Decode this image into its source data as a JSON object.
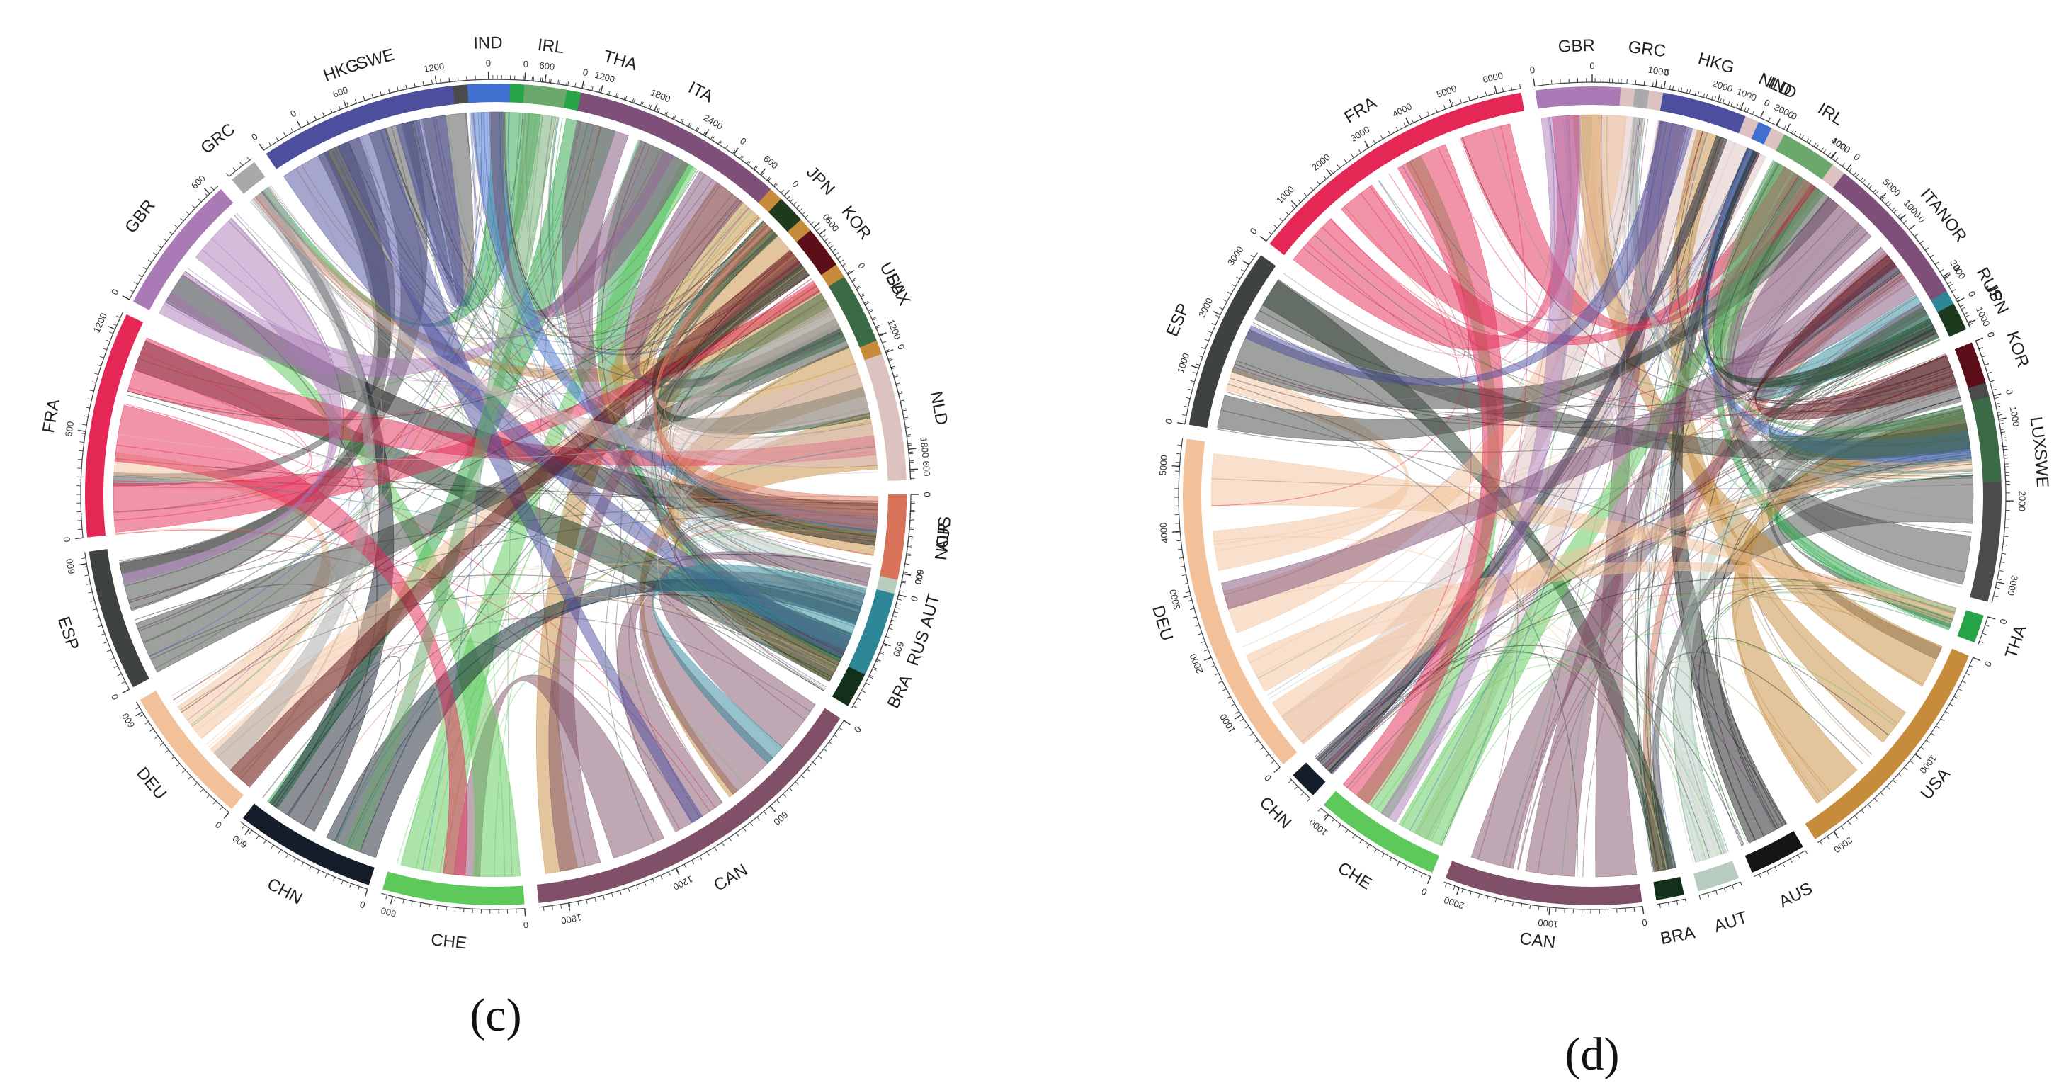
{
  "chart_data": [
    {
      "type": "chord",
      "panel": "c",
      "panel_label": "(c)",
      "segments": [
        {
          "name": "SWE",
          "color": "#4b4b4b",
          "ticks": [
            "0"
          ]
        },
        {
          "name": "THA",
          "color": "#27a348",
          "ticks": [
            "0",
            "600",
            "1200",
            "1800",
            "2400"
          ]
        },
        {
          "name": "USA",
          "color": "#c68c3c",
          "ticks": [
            "0",
            "600",
            "1200",
            "1800"
          ]
        },
        {
          "name": "AUS",
          "color": "#151515",
          "ticks": []
        },
        {
          "name": "AUT",
          "color": "#b7ccbf",
          "ticks": [
            "600"
          ]
        },
        {
          "name": "BRA",
          "color": "#13301a",
          "ticks": [
            "600"
          ]
        },
        {
          "name": "CAN",
          "color": "#7f5067",
          "ticks": [
            "0",
            "600",
            "1200",
            "1800"
          ]
        },
        {
          "name": "CHE",
          "color": "#5cc95a",
          "ticks": [
            "0",
            "600"
          ]
        },
        {
          "name": "CHN",
          "color": "#151d2b",
          "ticks": [
            "0",
            "600"
          ]
        },
        {
          "name": "DEU",
          "color": "#f2c19a",
          "ticks": [
            "0",
            "600"
          ]
        },
        {
          "name": "ESP",
          "color": "#3f4340",
          "ticks": [
            "0",
            "600"
          ]
        },
        {
          "name": "FRA",
          "color": "#e42754",
          "ticks": [
            "0",
            "600",
            "1200"
          ]
        },
        {
          "name": "GBR",
          "color": "#a97ab5",
          "ticks": [
            "0",
            "600"
          ]
        },
        {
          "name": "GRC",
          "color": "#a9a9a9",
          "ticks": []
        },
        {
          "name": "HKG",
          "color": "#4c4e9e",
          "ticks": [
            "0",
            "600",
            "1200"
          ]
        },
        {
          "name": "IND",
          "color": "#3f6fcf",
          "ticks": []
        },
        {
          "name": "IRL",
          "color": "#6aa86c",
          "ticks": [
            "0"
          ]
        },
        {
          "name": "ITA",
          "color": "#7e4f78",
          "ticks": [
            "0",
            "600"
          ]
        },
        {
          "name": "JPN",
          "color": "#1e3a1e",
          "ticks": [
            "0"
          ]
        },
        {
          "name": "KOR",
          "color": "#5c0f18",
          "ticks": [
            "0"
          ]
        },
        {
          "name": "LUX",
          "color": "#3b6a47",
          "ticks": [
            "0"
          ]
        },
        {
          "name": "NLD",
          "color": "#dcc2c0",
          "ticks": [
            "0",
            "600"
          ]
        },
        {
          "name": "NOR",
          "color": "#d9745b",
          "ticks": [
            "0",
            "600"
          ]
        },
        {
          "name": "RUS",
          "color": "#2e8797",
          "ticks": [
            "0"
          ]
        }
      ]
    },
    {
      "type": "chord",
      "panel": "d",
      "panel_label": "(d)",
      "segments": [
        {
          "name": "NLD",
          "color": "#dcc2c0",
          "ticks": [
            "0",
            "1000",
            "2000",
            "3000",
            "4000",
            "5000"
          ]
        },
        {
          "name": "NOR",
          "color": "#d9745b",
          "ticks": [
            "0"
          ]
        },
        {
          "name": "RUS",
          "color": "#2e8797",
          "ticks": [
            "0",
            "1000"
          ]
        },
        {
          "name": "SWE",
          "color": "#4b4b4b",
          "ticks": [
            "0",
            "1000",
            "2000",
            "3000"
          ]
        },
        {
          "name": "THA",
          "color": "#27a348",
          "ticks": [
            "0"
          ]
        },
        {
          "name": "USA",
          "color": "#c68c3c",
          "ticks": [
            "0",
            "1000",
            "2000"
          ]
        },
        {
          "name": "AUS",
          "color": "#151515",
          "ticks": []
        },
        {
          "name": "AUT",
          "color": "#b7ccbf",
          "ticks": []
        },
        {
          "name": "BRA",
          "color": "#13301a",
          "ticks": []
        },
        {
          "name": "CAN",
          "color": "#7f5067",
          "ticks": [
            "0",
            "1000",
            "2000"
          ]
        },
        {
          "name": "CHE",
          "color": "#5cc95a",
          "ticks": [
            "0",
            "1000"
          ]
        },
        {
          "name": "CHN",
          "color": "#151d2b",
          "ticks": []
        },
        {
          "name": "DEU",
          "color": "#f2c19a",
          "ticks": [
            "0",
            "1000",
            "2000",
            "3000",
            "4000",
            "5000"
          ]
        },
        {
          "name": "ESP",
          "color": "#3f4340",
          "ticks": [
            "0",
            "1000",
            "2000",
            "3000"
          ]
        },
        {
          "name": "FRA",
          "color": "#e42754",
          "ticks": [
            "0",
            "1000",
            "2000",
            "3000",
            "4000",
            "5000",
            "6000"
          ]
        },
        {
          "name": "GBR",
          "color": "#a97ab5",
          "ticks": [
            "0"
          ]
        },
        {
          "name": "GRC",
          "color": "#a9a9a9",
          "ticks": []
        },
        {
          "name": "HKG",
          "color": "#4c4e9e",
          "ticks": [
            "0",
            "1000"
          ]
        },
        {
          "name": "IND",
          "color": "#3f6fcf",
          "ticks": [
            "0"
          ]
        },
        {
          "name": "IRL",
          "color": "#6aa86c",
          "ticks": [
            "0",
            "1000"
          ]
        },
        {
          "name": "ITA",
          "color": "#7e4f78",
          "ticks": [
            "0",
            "1000",
            "2000"
          ]
        },
        {
          "name": "JPN",
          "color": "#1e3a1e",
          "ticks": [
            "0"
          ]
        },
        {
          "name": "KOR",
          "color": "#5c0f18",
          "ticks": [
            "0"
          ]
        },
        {
          "name": "LUX",
          "color": "#3b6a47",
          "ticks": [
            "0"
          ]
        }
      ]
    }
  ]
}
